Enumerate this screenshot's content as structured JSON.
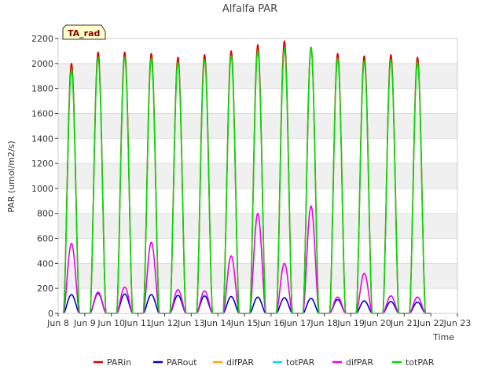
{
  "chart_data": {
    "type": "line",
    "title": "Alfalfa PAR",
    "xlabel": "Time",
    "ylabel": "PAR (umol/m2/s)",
    "ylim": [
      0,
      2200
    ],
    "xlim": [
      8,
      23
    ],
    "yticks": [
      0,
      200,
      400,
      600,
      800,
      1000,
      1200,
      1400,
      1600,
      1800,
      2000,
      2200
    ],
    "xticks": [
      {
        "value": 8,
        "label": "Jun 8"
      },
      {
        "value": 9,
        "label": "Jun 9"
      },
      {
        "value": 10,
        "label": "Jun 10"
      },
      {
        "value": 11,
        "label": "Jun 11"
      },
      {
        "value": 12,
        "label": "Jun 12"
      },
      {
        "value": 13,
        "label": "Jun 13"
      },
      {
        "value": 14,
        "label": "Jun 14"
      },
      {
        "value": 15,
        "label": "Jun 15"
      },
      {
        "value": 16,
        "label": "Jun 16"
      },
      {
        "value": 17,
        "label": "Jun 17"
      },
      {
        "value": 18,
        "label": "Jun 18"
      },
      {
        "value": 19,
        "label": "Jun 19"
      },
      {
        "value": 20,
        "label": "Jun 20"
      },
      {
        "value": 21,
        "label": "Jun 21"
      },
      {
        "value": 22,
        "label": "Jun 22"
      },
      {
        "value": 23,
        "label": "Jun 23"
      }
    ],
    "days": [
      8.5,
      9.5,
      10.5,
      11.5,
      12.5,
      13.5,
      14.5,
      15.5,
      16.5,
      17.5,
      18.5,
      19.5,
      20.5,
      21.5
    ],
    "series": [
      {
        "name": "PARin",
        "color": "#dd0000",
        "daily_peak": [
          2000,
          2090,
          2090,
          2080,
          2050,
          2070,
          2100,
          2150,
          2180,
          2130,
          2080,
          2060,
          2070,
          2050
        ]
      },
      {
        "name": "PARout",
        "color": "#0000cc",
        "daily_peak": [
          150,
          160,
          155,
          150,
          145,
          140,
          135,
          130,
          125,
          120,
          110,
          100,
          95,
          90
        ]
      },
      {
        "name": "difPAR",
        "color": "#ffa500",
        "daily_peak": []
      },
      {
        "name": "totPAR",
        "color": "#00dddd",
        "daily_peak": []
      },
      {
        "name": "difPAR",
        "color": "#ee00ee",
        "daily_peak": [
          560,
          170,
          210,
          570,
          190,
          180,
          460,
          800,
          400,
          860,
          130,
          320,
          140,
          130
        ]
      },
      {
        "name": "totPAR",
        "color": "#00dd00",
        "daily_peak": [
          1950,
          2050,
          2050,
          2040,
          2010,
          2030,
          2060,
          2100,
          2120,
          2130,
          2040,
          2020,
          2030,
          2010
        ]
      }
    ],
    "badge": "TA_rad",
    "legend_position": "bottom-center",
    "grid": true
  }
}
